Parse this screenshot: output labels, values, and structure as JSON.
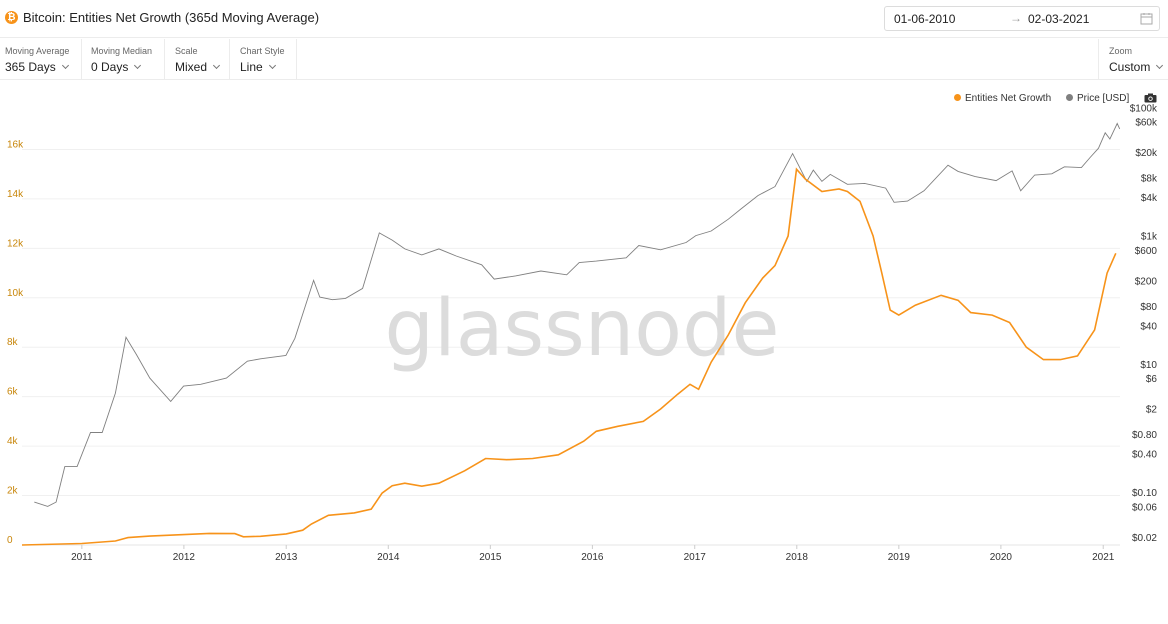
{
  "header": {
    "title": "Bitcoin: Entities Net Growth (365d Moving Average)",
    "asset_icon": "bitcoin-icon",
    "date_start": "01-06-2010",
    "date_arrow": "→",
    "date_end": "02-03-2021",
    "calendar_icon": "calendar-icon"
  },
  "controls": [
    {
      "label": "Moving Average",
      "value": "365 Days"
    },
    {
      "label": "Moving Median",
      "value": "0 Days"
    },
    {
      "label": "Scale",
      "value": "Mixed"
    },
    {
      "label": "Chart Style",
      "value": "Line"
    }
  ],
  "zoom": {
    "label": "Zoom",
    "value": "Custom"
  },
  "watermark": "glassnode",
  "camera_icon": "camera-icon",
  "colors": {
    "entities": "#f7931a",
    "price": "#808080",
    "left_axis": "#c8860a"
  },
  "chart_data": {
    "type": "line",
    "title": "Bitcoin: Entities Net Growth (365d Moving Average)",
    "legend_position": "top-right",
    "grid": true,
    "x_ticks": [
      "2011",
      "2012",
      "2013",
      "2014",
      "2015",
      "2016",
      "2017",
      "2018",
      "2019",
      "2020",
      "2021"
    ],
    "xlim": [
      "2010-06-01",
      "2021-03-02"
    ],
    "y_left": {
      "ticks": [
        0,
        2000,
        4000,
        6000,
        8000,
        10000,
        12000,
        14000,
        16000
      ],
      "tick_labels": [
        "0",
        "2k",
        "4k",
        "6k",
        "8k",
        "10k",
        "12k",
        "14k",
        "16k"
      ],
      "ylim": [
        0,
        18000
      ]
    },
    "y_right": {
      "scale": "log",
      "ticks": [
        0.02,
        0.06,
        0.1,
        0.4,
        0.8,
        2,
        6,
        10,
        40,
        80,
        200,
        600,
        1000,
        4000,
        8000,
        20000,
        60000,
        100000
      ],
      "tick_labels": [
        "$0.02",
        "$0.06",
        "$0.10",
        "$0.40",
        "$0.80",
        "$2",
        "$6",
        "$10",
        "$40",
        "$80",
        "$200",
        "$600",
        "$1k",
        "$4k",
        "$8k",
        "$20k",
        "$60k",
        "$100k"
      ],
      "ylim": [
        0.015,
        130000
      ]
    },
    "series": [
      {
        "name": "Entities Net Growth",
        "axis": "left",
        "points": [
          [
            "2010-06-01",
            0
          ],
          [
            "2011-01-01",
            60
          ],
          [
            "2011-05-01",
            160
          ],
          [
            "2011-06-15",
            300
          ],
          [
            "2011-09-01",
            360
          ],
          [
            "2012-01-01",
            420
          ],
          [
            "2012-04-01",
            470
          ],
          [
            "2012-07-01",
            460
          ],
          [
            "2012-08-01",
            330
          ],
          [
            "2012-10-01",
            350
          ],
          [
            "2013-01-01",
            450
          ],
          [
            "2013-03-01",
            600
          ],
          [
            "2013-04-01",
            850
          ],
          [
            "2013-06-01",
            1200
          ],
          [
            "2013-09-01",
            1300
          ],
          [
            "2013-11-01",
            1450
          ],
          [
            "2013-12-10",
            2100
          ],
          [
            "2014-01-15",
            2400
          ],
          [
            "2014-03-01",
            2500
          ],
          [
            "2014-05-01",
            2380
          ],
          [
            "2014-07-01",
            2500
          ],
          [
            "2014-10-01",
            3000
          ],
          [
            "2014-12-15",
            3500
          ],
          [
            "2015-03-01",
            3450
          ],
          [
            "2015-06-01",
            3500
          ],
          [
            "2015-09-01",
            3650
          ],
          [
            "2015-12-01",
            4200
          ],
          [
            "2016-01-15",
            4600
          ],
          [
            "2016-04-01",
            4800
          ],
          [
            "2016-07-01",
            5000
          ],
          [
            "2016-09-01",
            5500
          ],
          [
            "2016-11-01",
            6100
          ],
          [
            "2016-12-15",
            6500
          ],
          [
            "2017-01-15",
            6300
          ],
          [
            "2017-03-01",
            7400
          ],
          [
            "2017-05-01",
            8500
          ],
          [
            "2017-07-01",
            9800
          ],
          [
            "2017-09-01",
            10800
          ],
          [
            "2017-10-15",
            11300
          ],
          [
            "2017-12-01",
            12500
          ],
          [
            "2017-12-31",
            15200
          ],
          [
            "2018-02-01",
            14800
          ],
          [
            "2018-04-01",
            14300
          ],
          [
            "2018-06-01",
            14400
          ],
          [
            "2018-07-01",
            14300
          ],
          [
            "2018-08-15",
            13900
          ],
          [
            "2018-10-01",
            12500
          ],
          [
            "2018-11-01",
            11000
          ],
          [
            "2018-12-01",
            9500
          ],
          [
            "2019-01-01",
            9300
          ],
          [
            "2019-03-01",
            9700
          ],
          [
            "2019-06-01",
            10100
          ],
          [
            "2019-08-01",
            9900
          ],
          [
            "2019-09-15",
            9400
          ],
          [
            "2019-12-01",
            9300
          ],
          [
            "2020-02-01",
            9000
          ],
          [
            "2020-04-01",
            8000
          ],
          [
            "2020-06-01",
            7500
          ],
          [
            "2020-08-01",
            7500
          ],
          [
            "2020-10-01",
            7650
          ],
          [
            "2020-12-01",
            8700
          ],
          [
            "2021-01-15",
            11000
          ],
          [
            "2021-02-15",
            11800
          ]
        ]
      },
      {
        "name": "Price [USD]",
        "axis": "right",
        "points": [
          [
            "2010-07-15",
            0.07
          ],
          [
            "2010-09-01",
            0.06
          ],
          [
            "2010-10-01",
            0.07
          ],
          [
            "2010-11-01",
            0.25
          ],
          [
            "2010-12-15",
            0.25
          ],
          [
            "2011-02-01",
            0.85
          ],
          [
            "2011-03-15",
            0.85
          ],
          [
            "2011-05-01",
            3.5
          ],
          [
            "2011-06-08",
            26
          ],
          [
            "2011-07-15",
            14
          ],
          [
            "2011-09-01",
            6
          ],
          [
            "2011-11-15",
            2.6
          ],
          [
            "2011-12-31",
            4.5
          ],
          [
            "2012-03-01",
            4.8
          ],
          [
            "2012-06-01",
            6
          ],
          [
            "2012-08-15",
            11
          ],
          [
            "2012-10-01",
            12
          ],
          [
            "2012-12-31",
            13.5
          ],
          [
            "2013-02-01",
            25
          ],
          [
            "2013-04-09",
            200
          ],
          [
            "2013-05-01",
            110
          ],
          [
            "2013-06-15",
            100
          ],
          [
            "2013-08-01",
            105
          ],
          [
            "2013-10-01",
            150
          ],
          [
            "2013-11-30",
            1100
          ],
          [
            "2014-01-15",
            850
          ],
          [
            "2014-03-01",
            620
          ],
          [
            "2014-05-01",
            500
          ],
          [
            "2014-07-01",
            620
          ],
          [
            "2014-09-01",
            480
          ],
          [
            "2014-12-01",
            350
          ],
          [
            "2015-01-15",
            210
          ],
          [
            "2015-04-01",
            235
          ],
          [
            "2015-07-01",
            280
          ],
          [
            "2015-10-01",
            245
          ],
          [
            "2015-11-15",
            380
          ],
          [
            "2016-01-15",
            400
          ],
          [
            "2016-05-01",
            450
          ],
          [
            "2016-06-15",
            700
          ],
          [
            "2016-09-01",
            600
          ],
          [
            "2016-12-01",
            780
          ],
          [
            "2017-01-05",
            1000
          ],
          [
            "2017-03-01",
            1180
          ],
          [
            "2017-05-01",
            1800
          ],
          [
            "2017-06-15",
            2600
          ],
          [
            "2017-08-15",
            4200
          ],
          [
            "2017-10-15",
            5800
          ],
          [
            "2017-12-17",
            19000
          ],
          [
            "2018-02-06",
            7000
          ],
          [
            "2018-03-01",
            10500
          ],
          [
            "2018-04-01",
            7000
          ],
          [
            "2018-05-01",
            9000
          ],
          [
            "2018-07-01",
            6300
          ],
          [
            "2018-09-01",
            6500
          ],
          [
            "2018-11-15",
            5500
          ],
          [
            "2018-12-15",
            3300
          ],
          [
            "2019-02-01",
            3450
          ],
          [
            "2019-04-01",
            5000
          ],
          [
            "2019-06-26",
            12500
          ],
          [
            "2019-08-01",
            10000
          ],
          [
            "2019-10-01",
            8300
          ],
          [
            "2019-12-15",
            7200
          ],
          [
            "2020-02-10",
            10200
          ],
          [
            "2020-03-12",
            5000
          ],
          [
            "2020-05-01",
            8800
          ],
          [
            "2020-07-01",
            9200
          ],
          [
            "2020-08-15",
            11800
          ],
          [
            "2020-10-15",
            11500
          ],
          [
            "2020-11-15",
            16500
          ],
          [
            "2020-12-15",
            23000
          ],
          [
            "2021-01-08",
            40000
          ],
          [
            "2021-01-25",
            32000
          ],
          [
            "2021-02-20",
            56000
          ],
          [
            "2021-03-01",
            46000
          ]
        ]
      }
    ]
  }
}
